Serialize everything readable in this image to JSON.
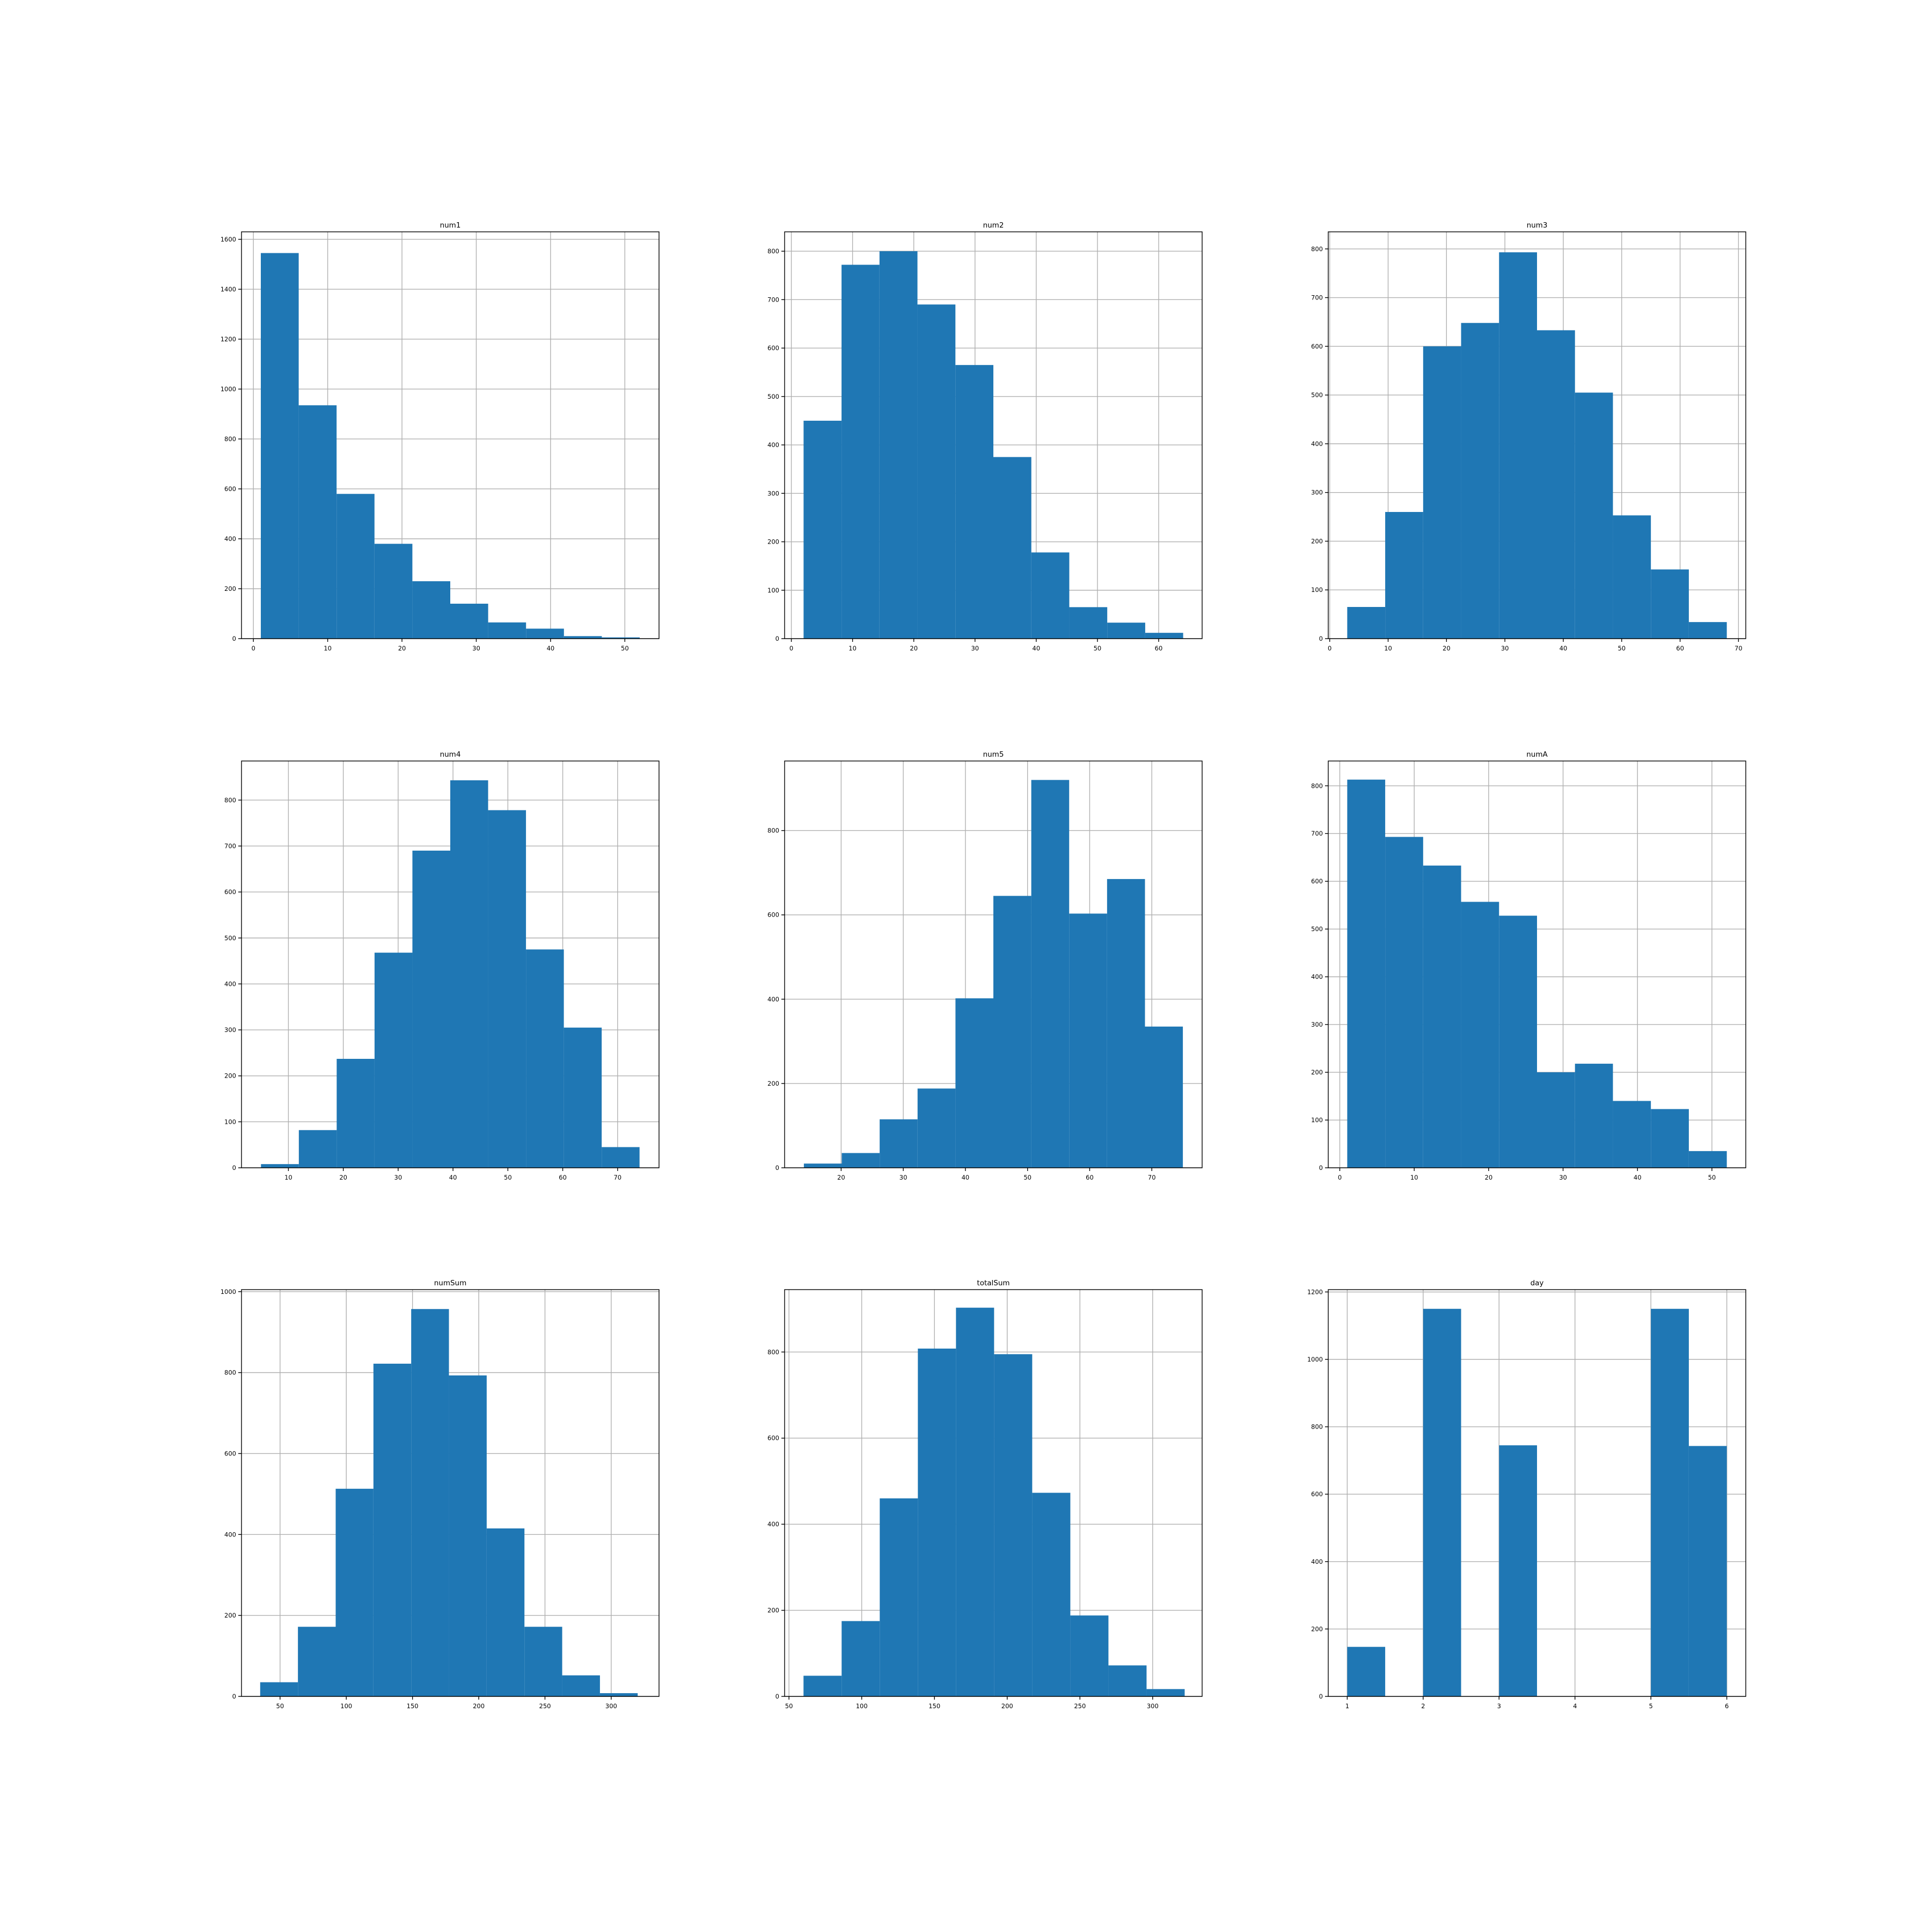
{
  "chart_data": [
    {
      "type": "bar",
      "title": "num1",
      "xlim": [
        -1.6,
        54.6
      ],
      "ylim": [
        0,
        1630
      ],
      "xticks": [
        0,
        10,
        20,
        30,
        40,
        50
      ],
      "yticks": [
        0,
        200,
        400,
        600,
        800,
        1000,
        1200,
        1400,
        1600
      ],
      "bins": [
        1.0,
        6.1,
        11.2,
        16.3,
        21.4,
        26.5,
        31.6,
        36.7,
        41.8,
        46.9,
        52.0
      ],
      "counts": [
        1545,
        935,
        580,
        380,
        230,
        140,
        65,
        40,
        10,
        5
      ],
      "grid": true
    },
    {
      "type": "bar",
      "title": "num2",
      "xlim": [
        -1.1,
        67.1
      ],
      "ylim": [
        0,
        840
      ],
      "xticks": [
        0,
        10,
        20,
        30,
        40,
        50,
        60
      ],
      "yticks": [
        0,
        100,
        200,
        300,
        400,
        500,
        600,
        700,
        800
      ],
      "bins": [
        2.0,
        8.2,
        14.4,
        20.6,
        26.8,
        33.0,
        39.2,
        45.4,
        51.6,
        57.8,
        64.0
      ],
      "counts": [
        450,
        772,
        800,
        690,
        565,
        375,
        178,
        65,
        33,
        12
      ],
      "grid": true
    },
    {
      "type": "bar",
      "title": "num3",
      "xlim": [
        -0.25,
        71.25
      ],
      "ylim": [
        0,
        835
      ],
      "xticks": [
        0,
        10,
        20,
        30,
        40,
        50,
        60,
        70
      ],
      "yticks": [
        0,
        100,
        200,
        300,
        400,
        500,
        600,
        700,
        800
      ],
      "bins": [
        3.0,
        9.5,
        16.0,
        22.5,
        29.0,
        35.5,
        42.0,
        48.5,
        55.0,
        61.5,
        68.0
      ],
      "counts": [
        65,
        260,
        600,
        648,
        793,
        633,
        505,
        253,
        142,
        34
      ],
      "grid": true
    },
    {
      "type": "bar",
      "title": "num4",
      "xlim": [
        1.45,
        77.55
      ],
      "ylim": [
        0,
        885
      ],
      "xticks": [
        10,
        20,
        30,
        40,
        50,
        60,
        70
      ],
      "yticks": [
        0,
        100,
        200,
        300,
        400,
        500,
        600,
        700,
        800
      ],
      "bins": [
        5.0,
        11.9,
        18.8,
        25.7,
        32.6,
        39.5,
        46.4,
        53.3,
        60.2,
        67.1,
        74.0
      ],
      "counts": [
        8,
        82,
        237,
        468,
        690,
        843,
        778,
        475,
        305,
        45
      ],
      "grid": true
    },
    {
      "type": "bar",
      "title": "num5",
      "xlim": [
        10.9,
        78.1
      ],
      "ylim": [
        0,
        965
      ],
      "xticks": [
        20,
        30,
        40,
        50,
        60,
        70
      ],
      "yticks": [
        0,
        200,
        400,
        600,
        800
      ],
      "bins": [
        14.0,
        20.1,
        26.2,
        32.3,
        38.4,
        44.5,
        50.6,
        56.7,
        62.8,
        68.9,
        75.0
      ],
      "counts": [
        10,
        35,
        115,
        188,
        402,
        645,
        920,
        603,
        685,
        335
      ],
      "grid": true
    },
    {
      "type": "bar",
      "title": "numA",
      "xlim": [
        -1.55,
        54.55
      ],
      "ylim": [
        0,
        852
      ],
      "xticks": [
        0,
        10,
        20,
        30,
        40,
        50
      ],
      "yticks": [
        0,
        100,
        200,
        300,
        400,
        500,
        600,
        700,
        800
      ],
      "bins": [
        1.0,
        6.1,
        11.2,
        16.3,
        21.4,
        26.5,
        31.6,
        36.7,
        41.8,
        46.9,
        52.0
      ],
      "counts": [
        813,
        693,
        633,
        557,
        528,
        200,
        218,
        140,
        123,
        35
      ],
      "grid": true
    },
    {
      "type": "bar",
      "title": "numSum",
      "xlim": [
        20.9,
        336.1
      ],
      "ylim": [
        0,
        1005
      ],
      "xticks": [
        50,
        100,
        150,
        200,
        250,
        300
      ],
      "yticks": [
        0,
        200,
        400,
        600,
        800,
        1000
      ],
      "bins": [
        35.0,
        63.5,
        92.0,
        120.5,
        149.0,
        177.5,
        206.0,
        234.5,
        263.0,
        291.5,
        320.0
      ],
      "counts": [
        35,
        172,
        513,
        822,
        957,
        793,
        415,
        172,
        52,
        8
      ],
      "grid": true
    },
    {
      "type": "bar",
      "title": "totalSum",
      "xlim": [
        47.0,
        334.0
      ],
      "ylim": [
        0,
        945
      ],
      "xticks": [
        50,
        100,
        150,
        200,
        250,
        300
      ],
      "yticks": [
        0,
        200,
        400,
        600,
        800
      ],
      "bins": [
        60.0,
        86.2,
        112.4,
        138.6,
        164.8,
        191.0,
        217.2,
        243.4,
        269.6,
        295.8,
        322.0
      ],
      "counts": [
        48,
        175,
        460,
        808,
        903,
        795,
        473,
        188,
        72,
        17
      ],
      "grid": true
    },
    {
      "type": "bar",
      "title": "day",
      "xlim": [
        0.75,
        6.25
      ],
      "ylim": [
        0,
        1207
      ],
      "xticks": [
        1,
        2,
        3,
        4,
        5,
        6
      ],
      "yticks": [
        0,
        200,
        400,
        600,
        800,
        1000,
        1200
      ],
      "bins": [
        1.0,
        1.5,
        2.0,
        2.5,
        3.0,
        3.5,
        4.0,
        4.5,
        5.0,
        5.5,
        6.0
      ],
      "counts": [
        147,
        0,
        1150,
        0,
        745,
        0,
        0,
        0,
        1150,
        743
      ],
      "grid": true
    }
  ],
  "style": {
    "bar_color": "#1f77b4",
    "grid_color": "#b0b0b0",
    "spine_color": "#000000",
    "background": "#ffffff"
  }
}
